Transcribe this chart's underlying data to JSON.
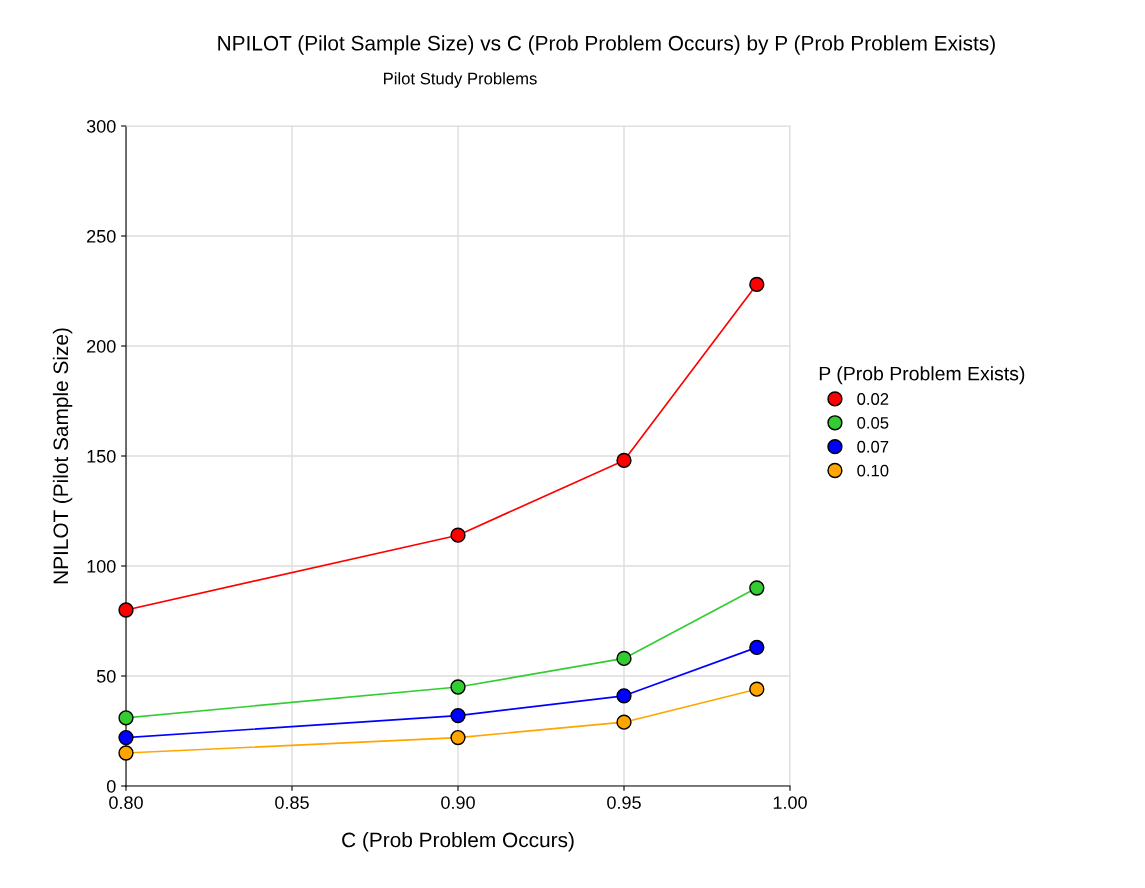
{
  "chart_data": {
    "type": "line",
    "title": "NPILOT (Pilot Sample Size) vs C (Prob Problem Occurs) by P (Prob Problem Exists)",
    "subtitle": "Pilot Study Problems",
    "xlabel": "C (Prob Problem Occurs)",
    "ylabel": "NPILOT (Pilot Sample Size)",
    "legend_title": "P (Prob Problem Exists)",
    "x": [
      0.8,
      0.9,
      0.95,
      0.99
    ],
    "series": [
      {
        "name": "0.02",
        "color": "#ff0000",
        "values": [
          80,
          114,
          148,
          228
        ]
      },
      {
        "name": "0.05",
        "color": "#33cc33",
        "values": [
          31,
          45,
          58,
          90
        ]
      },
      {
        "name": "0.07",
        "color": "#0000ff",
        "values": [
          22,
          32,
          41,
          63
        ]
      },
      {
        "name": "0.10",
        "color": "#ffa500",
        "values": [
          15,
          22,
          29,
          44
        ]
      }
    ],
    "xlim": [
      0.8,
      1.0
    ],
    "xticks": [
      {
        "value": 0.8,
        "label": "0.80"
      },
      {
        "value": 0.85,
        "label": "0.85"
      },
      {
        "value": 0.9,
        "label": "0.90"
      },
      {
        "value": 0.95,
        "label": "0.95"
      },
      {
        "value": 1.0,
        "label": "1.00"
      }
    ],
    "ylim": [
      0,
      300
    ],
    "yticks": [
      0,
      50,
      100,
      150,
      200,
      250,
      300
    ],
    "grid": true,
    "legend": "right",
    "marker": "circle",
    "line_style": "solid"
  }
}
